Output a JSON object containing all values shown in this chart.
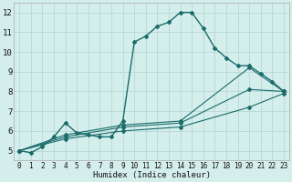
{
  "xlabel": "Humidex (Indice chaleur)",
  "bg_color": "#d4eeec",
  "grid_color": "#b8d8d5",
  "line_color": "#1a6b6b",
  "xlim": [
    -0.5,
    23.5
  ],
  "ylim": [
    4.5,
    12.5
  ],
  "yticks": [
    5,
    6,
    7,
    8,
    9,
    10,
    11,
    12
  ],
  "xticks": [
    0,
    1,
    2,
    3,
    4,
    5,
    6,
    7,
    8,
    9,
    10,
    11,
    12,
    13,
    14,
    15,
    16,
    17,
    18,
    19,
    20,
    21,
    22,
    23
  ],
  "curves": [
    {
      "x": [
        0,
        1,
        2,
        3,
        4,
        5,
        6,
        7,
        8,
        9,
        10,
        11,
        12,
        13,
        14,
        15,
        16,
        17,
        18,
        19,
        20,
        21,
        22,
        23
      ],
      "y": [
        5.0,
        4.9,
        5.2,
        5.7,
        6.4,
        5.9,
        5.8,
        5.7,
        5.7,
        6.5,
        10.5,
        10.8,
        11.3,
        11.5,
        12.0,
        12.0,
        11.2,
        10.2,
        9.7,
        9.3,
        9.3,
        8.9,
        8.5,
        8.0
      ],
      "marker": true
    },
    {
      "x": [
        0,
        4,
        9,
        14,
        20,
        23
      ],
      "y": [
        5.0,
        5.8,
        6.3,
        6.5,
        9.2,
        8.0
      ],
      "marker": true
    },
    {
      "x": [
        0,
        4,
        9,
        14,
        20,
        23
      ],
      "y": [
        5.0,
        5.7,
        6.2,
        6.4,
        8.1,
        8.0
      ],
      "marker": true
    },
    {
      "x": [
        0,
        4,
        9,
        14,
        20,
        23
      ],
      "y": [
        5.0,
        5.6,
        6.0,
        6.2,
        7.2,
        7.9
      ],
      "marker": true
    }
  ]
}
